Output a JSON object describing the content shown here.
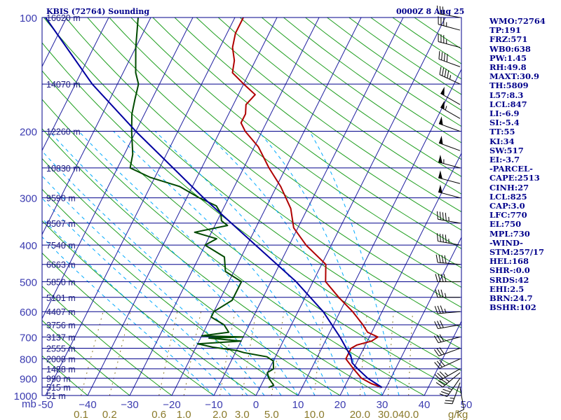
{
  "header": {
    "station_title": "KBIS (72764) Sounding",
    "valid_time": "0000Z  8 Aug 25"
  },
  "indices": [
    "WMO:72764",
    "TP:191",
    "FRZ:571",
    "WB0:638",
    "PW:1.45",
    "RH:49.8",
    "MAXT:30.9",
    "TH:5809",
    "L57:8.3",
    "LCL:847",
    "LI:-6.9",
    "SI:-5.4",
    "TT:55",
    "KI:34",
    "SW:517",
    "EI:-3.7",
    "-PARCEL-",
    "CAPE:2513",
    "CINH:27",
    "LCL:825",
    "CAP:3.0",
    "LFC:770",
    "EL:750",
    "MPL:730",
    "-WIND-",
    "STM:257/17",
    "HEL:168",
    "SHR-:0.0",
    "SRDS:42",
    "EHI:2.5",
    "BRN:24.7",
    "BSHR:102"
  ],
  "chart_data": {
    "type": "line",
    "title": "KBIS (72764) Sounding",
    "xlabel": "",
    "ylabel": "mb",
    "x_axis_unit": "",
    "pressure_range_mb": [
      100,
      1000
    ],
    "temperature_range_c": [
      -50,
      50
    ],
    "pressure_ticks": [
      "100",
      "200",
      "300",
      "400",
      "500",
      "600",
      "700",
      "800",
      "900",
      "1000"
    ],
    "pressure_unit_label": "mb",
    "temperature_ticks": [
      "-50",
      "−40",
      "−30",
      "−20",
      "−10",
      "0",
      "10",
      "20",
      "30",
      "40",
      "50"
    ],
    "temperature_tick_values": [
      -50,
      -40,
      -30,
      -20,
      -10,
      0,
      10,
      20,
      30,
      40,
      50
    ],
    "mixing_ratio_unit": "g/kg",
    "mixing_ratio_ticks": [
      {
        "label": "0.1",
        "g": 0.1
      },
      {
        "label": "0.2",
        "g": 0.2
      },
      {
        "label": "0.6",
        "g": 0.6
      },
      {
        "label": "1.0",
        "g": 1.0
      },
      {
        "label": "2.0",
        "g": 2.0
      },
      {
        "label": "3.0",
        "g": 3.0
      },
      {
        "label": "5.0",
        "g": 5.0
      },
      {
        "label": "10.0",
        "g": 10.0
      },
      {
        "label": "20.0",
        "g": 20.0
      },
      {
        "label": "30.0",
        "g": 30.0
      },
      {
        "label": "40.0",
        "g": 40.0
      }
    ],
    "height_labels": [
      {
        "p": 100,
        "text": "16620 m"
      },
      {
        "p": 150,
        "text": "14070 m"
      },
      {
        "p": 200,
        "text": "12260 m"
      },
      {
        "p": 250,
        "text": "10830 m"
      },
      {
        "p": 300,
        "text": "9590 m"
      },
      {
        "p": 350,
        "text": "8507 m"
      },
      {
        "p": 400,
        "text": "7540 m"
      },
      {
        "p": 450,
        "text": "6663 m"
      },
      {
        "p": 500,
        "text": "5850 m"
      },
      {
        "p": 550,
        "text": "5101 m"
      },
      {
        "p": 600,
        "text": "4407 m"
      },
      {
        "p": 650,
        "text": "3756 m"
      },
      {
        "p": 700,
        "text": "3137 m"
      },
      {
        "p": 750,
        "text": "2555 m"
      },
      {
        "p": 800,
        "text": "2008 m"
      },
      {
        "p": 850,
        "text": "1488 m"
      },
      {
        "p": 900,
        "text": "990 m"
      },
      {
        "p": 950,
        "text": "515 m"
      },
      {
        "p": 1000,
        "text": "51 m"
      }
    ],
    "series": [
      {
        "role": "temperature",
        "color": "#b00000",
        "points": [
          [
            952,
            29
          ],
          [
            930,
            26
          ],
          [
            900,
            23
          ],
          [
            850,
            20
          ],
          [
            800,
            17
          ],
          [
            770,
            17
          ],
          [
            750,
            17
          ],
          [
            735,
            18
          ],
          [
            718,
            21
          ],
          [
            700,
            22
          ],
          [
            680,
            19
          ],
          [
            650,
            17
          ],
          [
            600,
            13
          ],
          [
            550,
            8
          ],
          [
            500,
            3
          ],
          [
            450,
            1
          ],
          [
            400,
            -6
          ],
          [
            360,
            -11
          ],
          [
            320,
            -14
          ],
          [
            280,
            -19
          ],
          [
            250,
            -24
          ],
          [
            220,
            -29
          ],
          [
            200,
            -34
          ],
          [
            190,
            -36
          ],
          [
            180,
            -36
          ],
          [
            170,
            -37
          ],
          [
            160,
            -36
          ],
          [
            150,
            -40
          ],
          [
            140,
            -44
          ],
          [
            130,
            -45
          ],
          [
            120,
            -47
          ],
          [
            110,
            -48
          ],
          [
            100,
            -48
          ]
        ]
      },
      {
        "role": "dewpoint",
        "color": "#004a00",
        "points": [
          [
            952,
            2
          ],
          [
            940,
            3
          ],
          [
            900,
            1
          ],
          [
            870,
            0
          ],
          [
            850,
            1
          ],
          [
            810,
            0
          ],
          [
            790,
            -2
          ],
          [
            770,
            -8
          ],
          [
            760,
            -10
          ],
          [
            745,
            -16
          ],
          [
            730,
            -20
          ],
          [
            718,
            -10
          ],
          [
            705,
            -18
          ],
          [
            700,
            -10
          ],
          [
            695,
            -20
          ],
          [
            680,
            -14
          ],
          [
            650,
            -16
          ],
          [
            620,
            -20
          ],
          [
            600,
            -20
          ],
          [
            560,
            -17
          ],
          [
            500,
            -17
          ],
          [
            470,
            -22
          ],
          [
            430,
            -24
          ],
          [
            400,
            -30
          ],
          [
            385,
            -28
          ],
          [
            370,
            -34
          ],
          [
            355,
            -27
          ],
          [
            345,
            -29
          ],
          [
            330,
            -30
          ],
          [
            315,
            -32
          ],
          [
            300,
            -37
          ],
          [
            280,
            -43
          ],
          [
            265,
            -51
          ],
          [
            250,
            -57
          ],
          [
            230,
            -58
          ],
          [
            200,
            -61
          ],
          [
            180,
            -63
          ],
          [
            165,
            -64
          ],
          [
            150,
            -65
          ],
          [
            140,
            -67
          ],
          [
            120,
            -70
          ],
          [
            100,
            -73
          ]
        ]
      },
      {
        "role": "parcel",
        "color": "#0000a0",
        "points": [
          [
            952,
            29
          ],
          [
            900,
            24.5
          ],
          [
            850,
            21
          ],
          [
            820,
            19
          ],
          [
            790,
            18
          ],
          [
            700,
            13
          ],
          [
            600,
            6
          ],
          [
            500,
            -4
          ],
          [
            400,
            -18
          ],
          [
            300,
            -36
          ],
          [
            200,
            -60
          ],
          [
            150,
            -76
          ],
          [
            100,
            -95
          ]
        ]
      }
    ],
    "wind_barbs": [
      {
        "p": 952,
        "dir": 170,
        "spd": 10
      },
      {
        "p": 925,
        "dir": 200,
        "spd": 25
      },
      {
        "p": 900,
        "dir": 215,
        "spd": 35
      },
      {
        "p": 870,
        "dir": 230,
        "spd": 35
      },
      {
        "p": 850,
        "dir": 240,
        "spd": 35
      },
      {
        "p": 800,
        "dir": 245,
        "spd": 30
      },
      {
        "p": 750,
        "dir": 250,
        "spd": 30
      },
      {
        "p": 700,
        "dir": 255,
        "spd": 30
      },
      {
        "p": 650,
        "dir": 260,
        "spd": 30
      },
      {
        "p": 600,
        "dir": 265,
        "spd": 35
      },
      {
        "p": 550,
        "dir": 270,
        "spd": 35
      },
      {
        "p": 500,
        "dir": 270,
        "spd": 40
      },
      {
        "p": 450,
        "dir": 275,
        "spd": 40
      },
      {
        "p": 400,
        "dir": 280,
        "spd": 45
      },
      {
        "p": 350,
        "dir": 280,
        "spd": 45
      },
      {
        "p": 300,
        "dir": 285,
        "spd": 50
      },
      {
        "p": 275,
        "dir": 285,
        "spd": 50
      },
      {
        "p": 250,
        "dir": 285,
        "spd": 55
      },
      {
        "p": 225,
        "dir": 290,
        "spd": 50
      },
      {
        "p": 200,
        "dir": 290,
        "spd": 50
      },
      {
        "p": 185,
        "dir": 300,
        "spd": 55
      },
      {
        "p": 170,
        "dir": 300,
        "spd": 50
      },
      {
        "p": 150,
        "dir": 295,
        "spd": 45
      },
      {
        "p": 135,
        "dir": 290,
        "spd": 40
      },
      {
        "p": 120,
        "dir": 285,
        "spd": 35
      },
      {
        "p": 108,
        "dir": 285,
        "spd": 35
      },
      {
        "p": 100,
        "dir": 280,
        "spd": 30
      }
    ]
  }
}
